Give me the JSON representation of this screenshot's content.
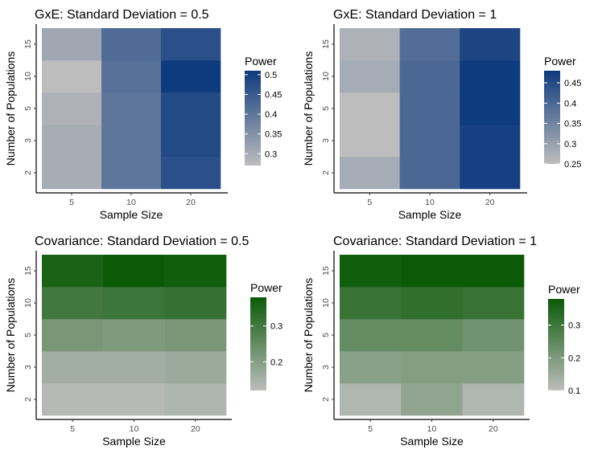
{
  "chart_data": [
    {
      "type": "heatmap",
      "title": "GxE: Standard Deviation = 0.5",
      "xlabel": "Sample Size",
      "ylabel": "Number of Populations",
      "x": [
        "5",
        "10",
        "20"
      ],
      "y": [
        "2",
        "3",
        "5",
        "10",
        "15"
      ],
      "values": [
        [
          0.3,
          0.4,
          0.47
        ],
        [
          0.3,
          0.4,
          0.48
        ],
        [
          0.29,
          0.4,
          0.48
        ],
        [
          0.27,
          0.41,
          0.51
        ],
        [
          0.31,
          0.42,
          0.47
        ]
      ],
      "legend": {
        "title": "Power",
        "ticks": [
          0.3,
          0.35,
          0.4,
          0.45,
          0.5
        ],
        "range": [
          0.27,
          0.51
        ],
        "placement": "right"
      },
      "colors": {
        "low": "#bdbdbd",
        "high": "#0e3a7e"
      },
      "grid": false
    },
    {
      "type": "heatmap",
      "title": "GxE: Standard Deviation = 1",
      "xlabel": "Sample Size",
      "ylabel": "Number of Populations",
      "x": [
        "5",
        "10",
        "20"
      ],
      "y": [
        "2",
        "3",
        "5",
        "10",
        "15"
      ],
      "values": [
        [
          0.28,
          0.4,
          0.47
        ],
        [
          0.25,
          0.4,
          0.47
        ],
        [
          0.25,
          0.4,
          0.48
        ],
        [
          0.28,
          0.4,
          0.48
        ],
        [
          0.27,
          0.39,
          0.46
        ]
      ],
      "legend": {
        "title": "Power",
        "ticks": [
          0.25,
          0.3,
          0.35,
          0.4,
          0.45
        ],
        "range": [
          0.25,
          0.48
        ],
        "placement": "right"
      },
      "colors": {
        "low": "#bdbdbd",
        "high": "#0e3a7e"
      },
      "grid": false
    },
    {
      "type": "heatmap",
      "title": "Covariance: Standard Deviation = 0.5",
      "xlabel": "Sample Size",
      "ylabel": "Number of Populations",
      "x": [
        "5",
        "10",
        "20"
      ],
      "y": [
        "2",
        "3",
        "5",
        "10",
        "15"
      ],
      "values": [
        [
          0.13,
          0.13,
          0.14
        ],
        [
          0.16,
          0.16,
          0.17
        ],
        [
          0.22,
          0.21,
          0.22
        ],
        [
          0.3,
          0.31,
          0.32
        ],
        [
          0.36,
          0.38,
          0.37
        ]
      ],
      "legend": {
        "title": "Power",
        "ticks": [
          0.2,
          0.3
        ],
        "range": [
          0.12,
          0.38
        ],
        "placement": "right"
      },
      "colors": {
        "low": "#bdbdbd",
        "high": "#0b5a08"
      },
      "grid": false
    },
    {
      "type": "heatmap",
      "title": "Covariance: Standard Deviation = 1",
      "xlabel": "Sample Size",
      "ylabel": "Number of Populations",
      "x": [
        "5",
        "10",
        "20"
      ],
      "y": [
        "2",
        "3",
        "5",
        "10",
        "15"
      ],
      "values": [
        [
          0.12,
          0.17,
          0.12
        ],
        [
          0.18,
          0.19,
          0.19
        ],
        [
          0.24,
          0.24,
          0.22
        ],
        [
          0.31,
          0.32,
          0.31
        ],
        [
          0.37,
          0.38,
          0.38
        ]
      ],
      "legend": {
        "title": "Power",
        "ticks": [
          0.1,
          0.2,
          0.3
        ],
        "range": [
          0.1,
          0.38
        ],
        "placement": "right"
      },
      "colors": {
        "low": "#bdbdbd",
        "high": "#0b5a08"
      },
      "grid": false
    }
  ]
}
